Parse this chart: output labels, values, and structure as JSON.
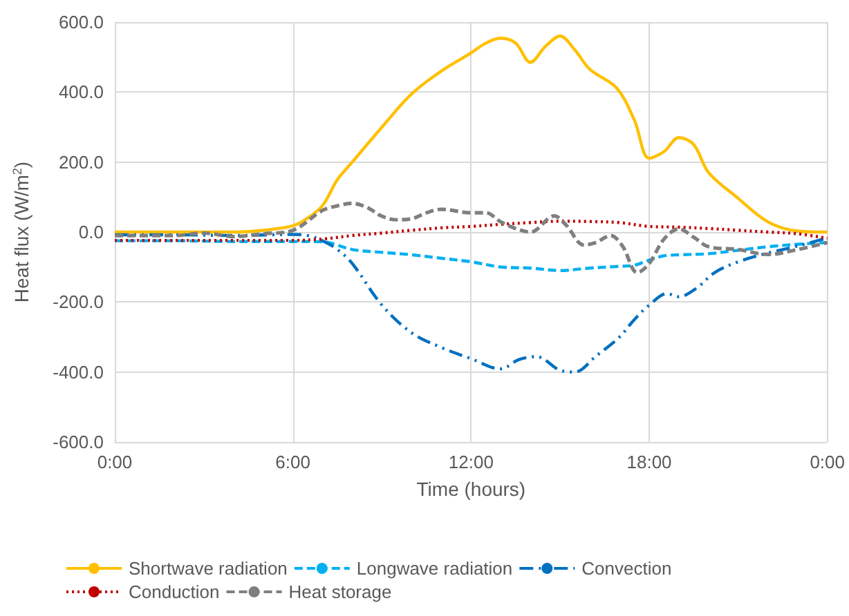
{
  "chart_data": {
    "type": "line",
    "xlabel": "Time (hours)",
    "ylabel": "Heat flux (W/m$^{2}$)",
    "xlim": [
      0,
      24
    ],
    "xticks": [
      {
        "value": 0,
        "label": "0:00"
      },
      {
        "value": 6,
        "label": "6:00"
      },
      {
        "value": 12,
        "label": "12:00"
      },
      {
        "value": 18,
        "label": "18:00"
      },
      {
        "value": 24,
        "label": "0:00"
      }
    ],
    "ylim": [
      -600,
      600
    ],
    "yticks": [
      {
        "value": -600,
        "label": "-600.0"
      },
      {
        "value": -400,
        "label": "-400.0"
      },
      {
        "value": -200,
        "label": "-200.0"
      },
      {
        "value": 0,
        "label": "0.0"
      },
      {
        "value": 200,
        "label": "200.0"
      },
      {
        "value": 400,
        "label": "400.0"
      },
      {
        "value": 600,
        "label": "600.0"
      }
    ],
    "grid": true,
    "legend": "bottom",
    "marker": "none",
    "series": [
      {
        "name": "Shortwave radiation",
        "color": "#ffc000",
        "line_style": "solid",
        "x": [
          0,
          1,
          2,
          3,
          4,
          5,
          6,
          6.5,
          7,
          7.5,
          8,
          9,
          10,
          11,
          12,
          12.5,
          13,
          13.5,
          14,
          14.5,
          15,
          15.5,
          16,
          16.9,
          17.5,
          18,
          18.5,
          19,
          19.5,
          20,
          21,
          22,
          23,
          24
        ],
        "values": [
          0,
          0,
          0,
          0,
          0,
          5,
          18,
          40,
          76,
          150,
          200,
          300,
          395,
          460,
          512,
          540,
          554,
          540,
          485,
          530,
          560,
          520,
          465,
          412,
          320,
          211,
          230,
          270,
          250,
          170,
          96,
          29,
          3,
          0
        ]
      },
      {
        "name": "Longwave radiation",
        "color": "#00b0f0",
        "line_style": "dashed",
        "x": [
          0,
          2,
          4,
          6,
          7,
          8,
          9,
          10,
          11,
          12,
          13,
          14,
          15,
          16,
          17,
          17.5,
          18,
          18.5,
          19,
          20,
          21,
          22,
          23,
          24
        ],
        "values": [
          -25,
          -25,
          -27,
          -27,
          -28,
          -50,
          -58,
          -65,
          -75,
          -85,
          -100,
          -103,
          -110,
          -103,
          -98,
          -95,
          -80,
          -68,
          -65,
          -62,
          -52,
          -42,
          -35,
          -30
        ]
      },
      {
        "name": "Convection",
        "color": "#0070c0",
        "line_style": "dashdot",
        "x": [
          0,
          2,
          4,
          6,
          6.5,
          7,
          7.5,
          8,
          9,
          10,
          11,
          12,
          13,
          13.6,
          14.2,
          15,
          15.5,
          16.2,
          17,
          17.5,
          18,
          18.6,
          19,
          19.6,
          20.2,
          21,
          22,
          23,
          24
        ],
        "values": [
          -8,
          -8,
          -10,
          -7,
          -10,
          -25,
          -50,
          -90,
          -209,
          -288,
          -330,
          -362,
          -391,
          -365,
          -356,
          -395,
          -400,
          -355,
          -300,
          -250,
          -209,
          -176,
          -185,
          -160,
          -116,
          -85,
          -60,
          -40,
          -17
        ]
      },
      {
        "name": "Conduction",
        "color": "#c00000",
        "line_style": "dotted",
        "x": [
          0,
          2,
          4,
          6,
          7,
          8,
          9,
          10,
          11,
          12,
          13,
          14,
          15,
          16,
          17,
          18,
          19,
          20,
          21,
          22,
          23,
          24
        ],
        "values": [
          -24,
          -24,
          -24,
          -24,
          -20,
          -10,
          -3,
          5,
          12,
          16,
          22,
          27,
          31,
          30,
          27,
          16,
          14,
          10,
          5,
          0,
          -5,
          -18
        ]
      },
      {
        "name": "Heat storage",
        "color": "#7f7f7f",
        "line_style": "dashed",
        "x": [
          0,
          2,
          3,
          4,
          5,
          6,
          7,
          7.5,
          8,
          8.5,
          9,
          9.5,
          10,
          10.5,
          11,
          12,
          12.5,
          13,
          13.5,
          14,
          14.8,
          15.2,
          15.8,
          16.2,
          16.7,
          17.1,
          17.6,
          18,
          18.5,
          19,
          19.5,
          20,
          21,
          22,
          23,
          24
        ],
        "values": [
          -10,
          -10,
          -3,
          -13,
          -5,
          5,
          62,
          75,
          82,
          70,
          45,
          35,
          38,
          55,
          65,
          55,
          55,
          29,
          10,
          0,
          46,
          20,
          -37,
          -30,
          -10,
          -40,
          -116,
          -90,
          -20,
          9,
          -15,
          -42,
          -50,
          -64,
          -50,
          -30
        ]
      }
    ]
  }
}
